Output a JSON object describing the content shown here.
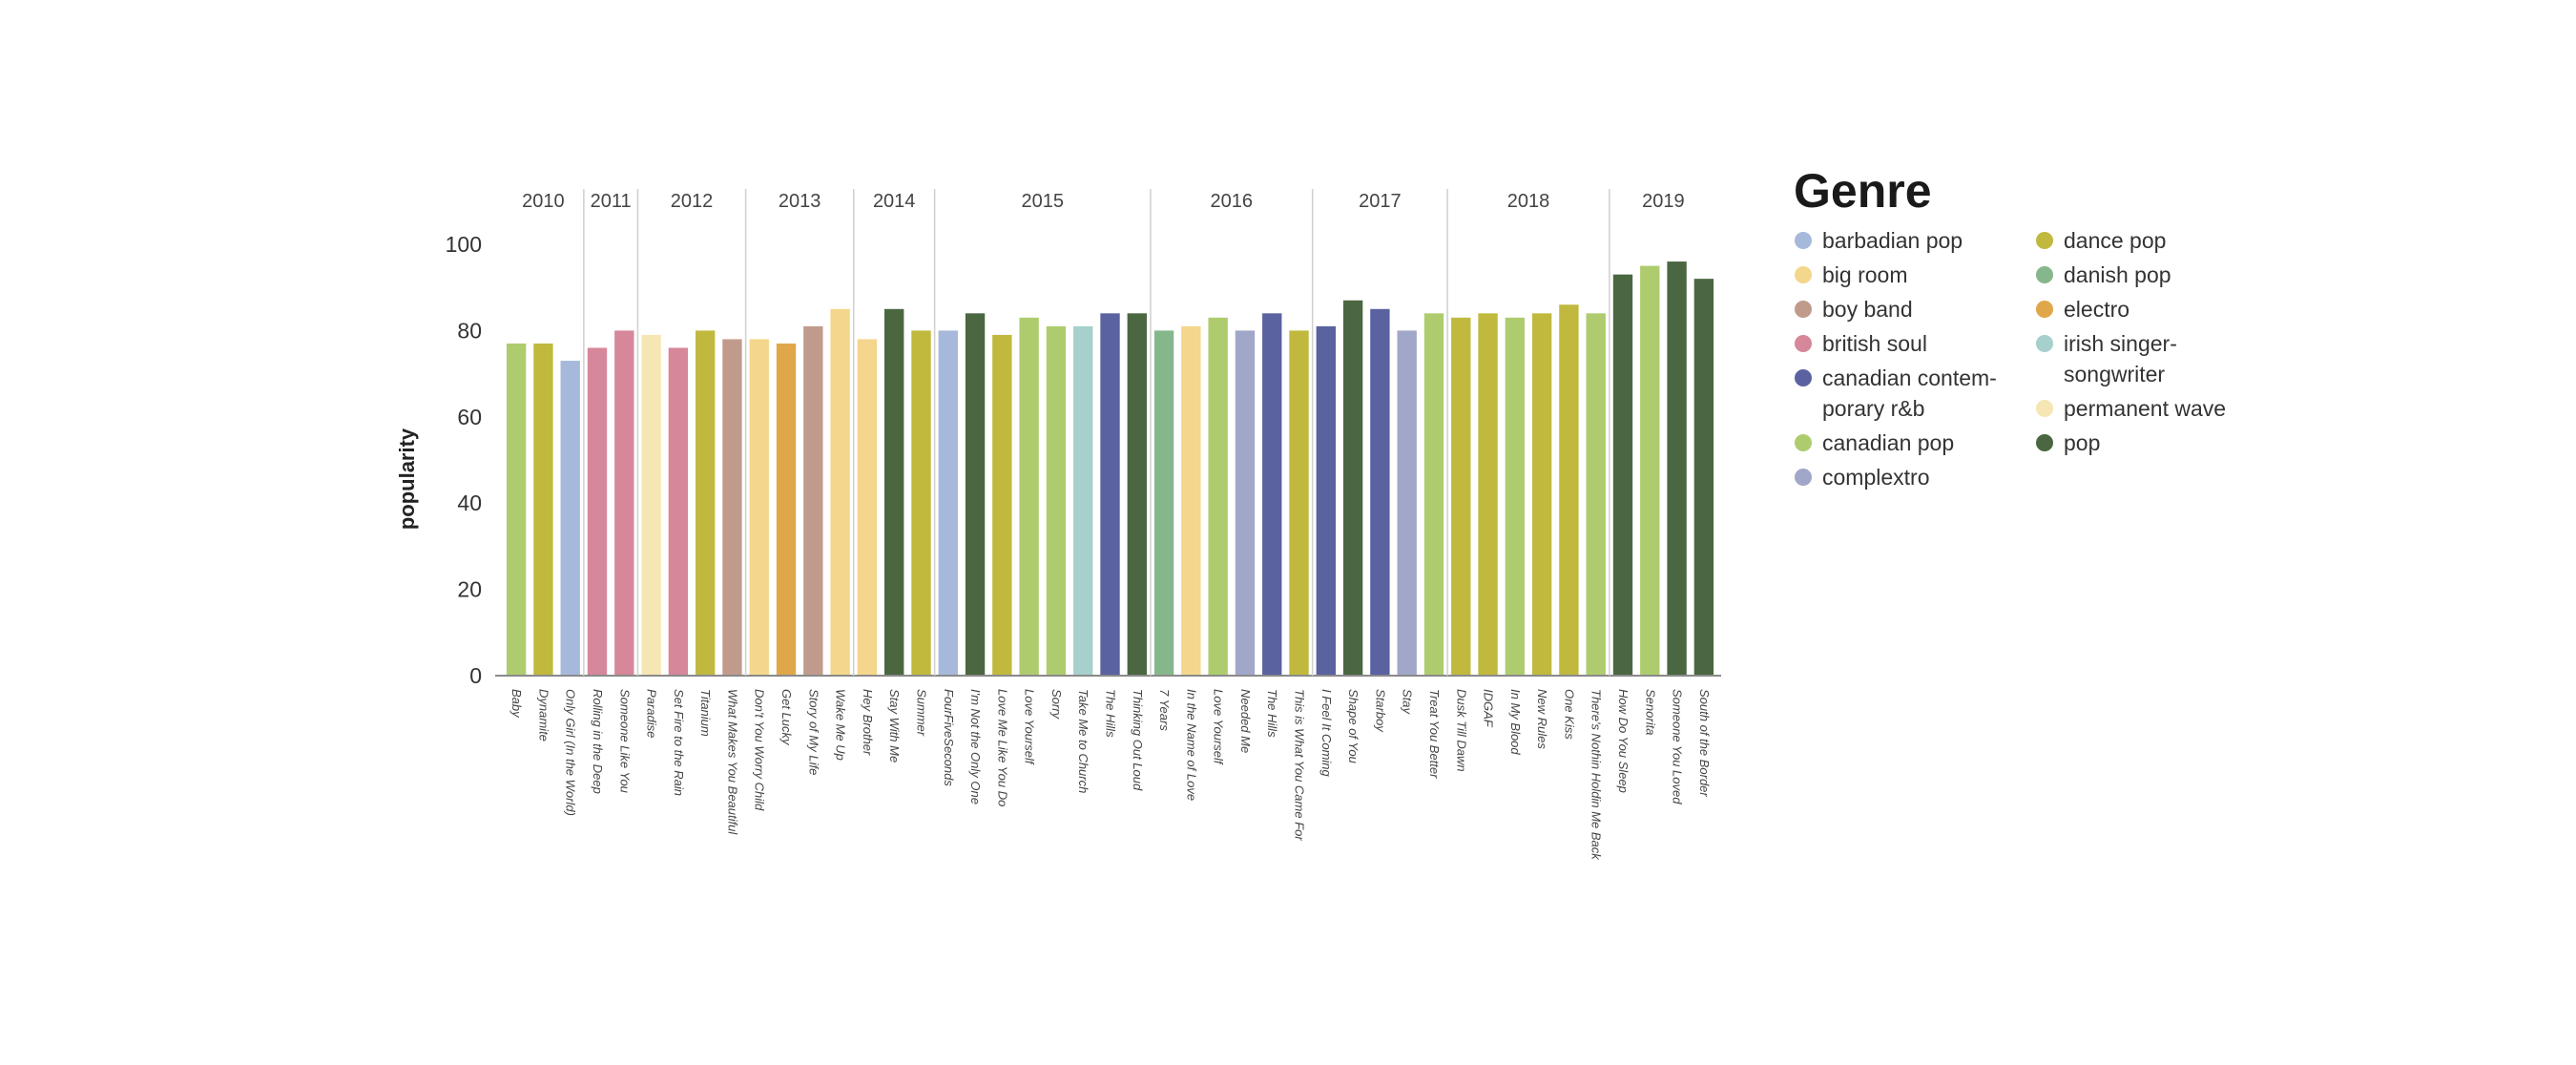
{
  "chart_data": {
    "type": "bar",
    "ylabel": "popularity",
    "ylim": [
      0,
      100
    ],
    "yticks": [
      0,
      20,
      40,
      60,
      80,
      100
    ],
    "grid": false,
    "legend_placement": "right",
    "legend_title": "Genre",
    "genres": [
      {
        "name": "barbadian pop",
        "lines": [
          "barbadian pop"
        ],
        "color": "#a7b9db"
      },
      {
        "name": "big room",
        "lines": [
          "big room"
        ],
        "color": "#f4d68c"
      },
      {
        "name": "boy band",
        "lines": [
          "boy band"
        ],
        "color": "#c09b8c"
      },
      {
        "name": "british soul",
        "lines": [
          "british soul"
        ],
        "color": "#d6879a"
      },
      {
        "name": "canadian contemporary r&b",
        "lines": [
          "canadian contem-",
          "porary r&b"
        ],
        "color": "#5b62a0"
      },
      {
        "name": "canadian pop",
        "lines": [
          "canadian pop"
        ],
        "color": "#aecc6e"
      },
      {
        "name": "complextro",
        "lines": [
          "complextro"
        ],
        "color": "#a0a7c8"
      },
      {
        "name": "dance pop",
        "lines": [
          "dance pop"
        ],
        "color": "#c0b93e"
      },
      {
        "name": "danish pop",
        "lines": [
          "danish pop"
        ],
        "color": "#86b78c"
      },
      {
        "name": "electro",
        "lines": [
          "electro"
        ],
        "color": "#e0a74a"
      },
      {
        "name": "irish singer-songwriter",
        "lines": [
          "irish singer-",
          "songwriter"
        ],
        "color": "#a6d0cc"
      },
      {
        "name": "permanent wave",
        "lines": [
          "permanent wave"
        ],
        "color": "#f6e6b3"
      },
      {
        "name": "pop",
        "lines": [
          "pop"
        ],
        "color": "#4a6741"
      }
    ],
    "years": [
      {
        "year": "2010",
        "songs": [
          {
            "title": "Baby",
            "genre": "canadian pop",
            "value": 77
          },
          {
            "title": "Dynamite",
            "genre": "dance pop",
            "value": 77
          },
          {
            "title": "Only Girl (In the World)",
            "genre": "barbadian pop",
            "value": 73
          }
        ]
      },
      {
        "year": "2011",
        "songs": [
          {
            "title": "Rolling in the Deep",
            "genre": "british soul",
            "value": 76
          },
          {
            "title": "Someone Like You",
            "genre": "british soul",
            "value": 80
          }
        ]
      },
      {
        "year": "2012",
        "songs": [
          {
            "title": "Paradise",
            "genre": "permanent wave",
            "value": 79
          },
          {
            "title": "Set Fire to the Rain",
            "genre": "british soul",
            "value": 76
          },
          {
            "title": "Titanium",
            "genre": "dance pop",
            "value": 80
          },
          {
            "title": "What Makes You Beautiful",
            "genre": "boy band",
            "value": 78
          }
        ]
      },
      {
        "year": "2013",
        "songs": [
          {
            "title": "Don't You Worry Child",
            "genre": "big room",
            "value": 78
          },
          {
            "title": "Get Lucky",
            "genre": "electro",
            "value": 77
          },
          {
            "title": "Story of My Life",
            "genre": "boy band",
            "value": 81
          },
          {
            "title": "Wake Me Up",
            "genre": "big room",
            "value": 85
          }
        ]
      },
      {
        "year": "2014",
        "songs": [
          {
            "title": "Hey Brother",
            "genre": "big room",
            "value": 78
          },
          {
            "title": "Stay With Me",
            "genre": "pop",
            "value": 85
          },
          {
            "title": "Summer",
            "genre": "dance pop",
            "value": 80
          }
        ]
      },
      {
        "year": "2015",
        "songs": [
          {
            "title": "FourFiveSeconds",
            "genre": "barbadian pop",
            "value": 80
          },
          {
            "title": "I'm Not the Only One",
            "genre": "pop",
            "value": 84
          },
          {
            "title": "Love Me Like You Do",
            "genre": "dance pop",
            "value": 79
          },
          {
            "title": "Love Yourself",
            "genre": "canadian pop",
            "value": 83
          },
          {
            "title": "Sorry",
            "genre": "canadian pop",
            "value": 81
          },
          {
            "title": "Take Me to Church",
            "genre": "irish singer-songwriter",
            "value": 81
          },
          {
            "title": "The Hills",
            "genre": "canadian contemporary r&b",
            "value": 84
          },
          {
            "title": "Thinking Out Loud",
            "genre": "pop",
            "value": 84
          }
        ]
      },
      {
        "year": "2016",
        "songs": [
          {
            "title": "7 Years",
            "genre": "danish pop",
            "value": 80
          },
          {
            "title": "In the Name of Love",
            "genre": "big room",
            "value": 81
          },
          {
            "title": "Love Yourself",
            "genre": "canadian pop",
            "value": 83
          },
          {
            "title": "Needed Me",
            "genre": "complextro",
            "value": 80
          },
          {
            "title": "The Hills",
            "genre": "canadian contemporary r&b",
            "value": 84
          },
          {
            "title": "This is What You Came For",
            "genre": "dance pop",
            "value": 80
          }
        ]
      },
      {
        "year": "2017",
        "songs": [
          {
            "title": "I Feel It Coming",
            "genre": "canadian contemporary r&b",
            "value": 81
          },
          {
            "title": "Shape of You",
            "genre": "pop",
            "value": 87
          },
          {
            "title": "Starboy",
            "genre": "canadian contemporary r&b",
            "value": 85
          },
          {
            "title": "Stay",
            "genre": "complextro",
            "value": 80
          },
          {
            "title": "Treat You Better",
            "genre": "canadian pop",
            "value": 84
          }
        ]
      },
      {
        "year": "2018",
        "songs": [
          {
            "title": "Dusk Till Dawn",
            "genre": "dance pop",
            "value": 83
          },
          {
            "title": "IDGAF",
            "genre": "dance pop",
            "value": 84
          },
          {
            "title": "In My Blood",
            "genre": "canadian pop",
            "value": 83
          },
          {
            "title": "New Rules",
            "genre": "dance pop",
            "value": 84
          },
          {
            "title": "One Kiss",
            "genre": "dance pop",
            "value": 86
          },
          {
            "title": "There's Nothin Holdin Me Back",
            "genre": "canadian pop",
            "value": 84
          }
        ]
      },
      {
        "year": "2019",
        "songs": [
          {
            "title": "How Do You Sleep",
            "genre": "pop",
            "value": 93
          },
          {
            "title": "Senorita",
            "genre": "canadian pop",
            "value": 95
          },
          {
            "title": "Someone You Loved",
            "genre": "pop",
            "value": 96
          },
          {
            "title": "South of the Border",
            "genre": "pop",
            "value": 92
          }
        ]
      }
    ]
  }
}
